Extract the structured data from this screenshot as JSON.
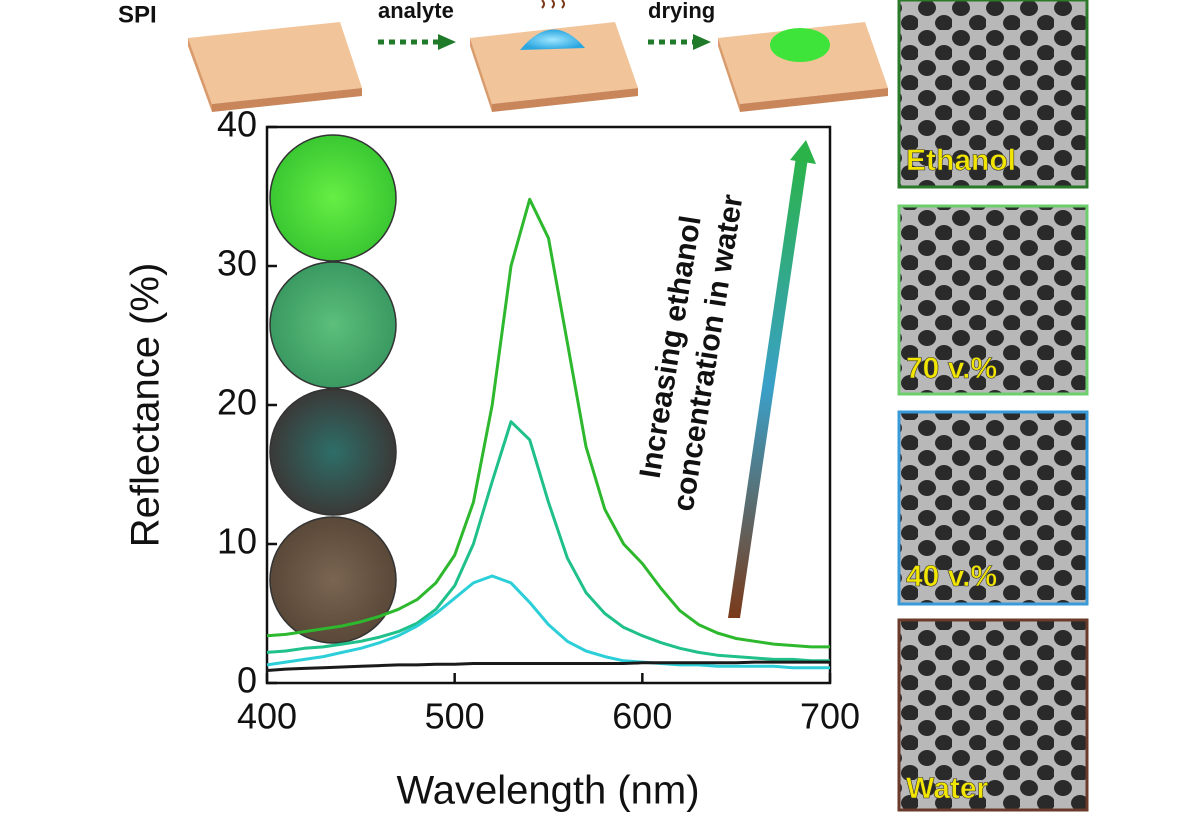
{
  "schematic": {
    "label": "SPI",
    "steps": [
      "analyte",
      "drying"
    ]
  },
  "sem_panels": [
    "Ethanol",
    "70 v.%",
    "40 v.%",
    "Water"
  ],
  "chart_data": {
    "type": "line",
    "x_label": "Wavelength (nm)",
    "y_label": "Reflectance (%)",
    "annotation": [
      "Increasing ethanol",
      "concentration in water"
    ],
    "x": [
      400,
      410,
      420,
      430,
      440,
      450,
      460,
      470,
      480,
      490,
      500,
      510,
      520,
      530,
      540,
      550,
      560,
      570,
      580,
      590,
      600,
      610,
      620,
      630,
      640,
      650,
      660,
      670,
      680,
      690,
      700
    ],
    "series": [
      {
        "color": "#2db82d",
        "values": [
          3.4,
          3.5,
          3.7,
          3.9,
          4.1,
          4.4,
          4.8,
          5.3,
          6.0,
          7.2,
          9.2,
          13,
          20,
          30,
          34.8,
          32,
          24.5,
          17,
          12.5,
          10,
          8.6,
          6.8,
          5.2,
          4.2,
          3.6,
          3.2,
          3.0,
          2.8,
          2.7,
          2.6,
          2.6
        ]
      },
      {
        "color": "#1fc08a",
        "values": [
          2.2,
          2.3,
          2.5,
          2.6,
          2.8,
          3.0,
          3.3,
          3.7,
          4.3,
          5.3,
          7,
          10,
          14.5,
          18.8,
          17.5,
          13,
          9,
          6.5,
          5,
          4,
          3.4,
          2.9,
          2.5,
          2.2,
          2.0,
          1.9,
          1.8,
          1.7,
          1.7,
          1.6,
          1.6
        ]
      },
      {
        "color": "#2ccfd8",
        "values": [
          1.3,
          1.5,
          1.7,
          1.9,
          2.2,
          2.5,
          2.9,
          3.4,
          4.1,
          5.0,
          6.1,
          7.2,
          7.7,
          7.2,
          5.8,
          4.2,
          3.0,
          2.3,
          1.9,
          1.6,
          1.5,
          1.4,
          1.3,
          1.3,
          1.2,
          1.2,
          1.2,
          1.2,
          1.1,
          1.1,
          1.1
        ]
      },
      {
        "color": "#1a1a1a",
        "values": [
          0.9,
          1.0,
          1.05,
          1.1,
          1.15,
          1.2,
          1.25,
          1.3,
          1.3,
          1.35,
          1.35,
          1.4,
          1.4,
          1.4,
          1.4,
          1.4,
          1.4,
          1.4,
          1.4,
          1.4,
          1.45,
          1.45,
          1.45,
          1.45,
          1.45,
          1.45,
          1.5,
          1.5,
          1.5,
          1.5,
          1.5
        ]
      }
    ],
    "xlim": [
      400,
      700
    ],
    "ylim": [
      0,
      40
    ],
    "xticks": [
      400,
      500,
      600,
      700
    ],
    "yticks": [
      0,
      10,
      20,
      30,
      40
    ]
  }
}
